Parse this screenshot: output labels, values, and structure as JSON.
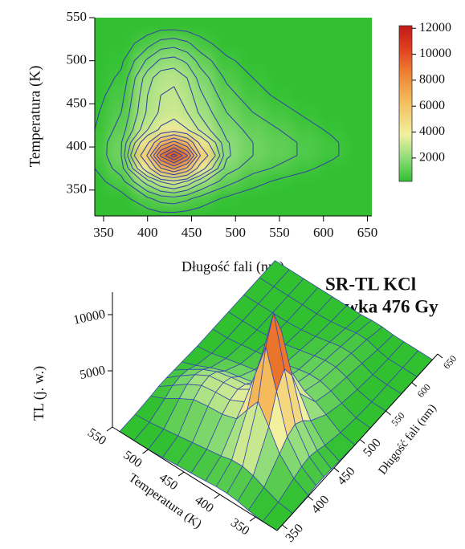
{
  "chart_data": [
    {
      "type": "contour",
      "xlabel": "Długość fali (nm)",
      "ylabel": "Temperatura (K)",
      "xlim": [
        340,
        655
      ],
      "ylim": [
        320,
        550
      ],
      "xticks": [
        350,
        400,
        450,
        500,
        550,
        600,
        650
      ],
      "yticks": [
        350,
        400,
        450,
        500,
        550
      ],
      "clim": [
        200,
        12200
      ],
      "colorbar_ticks": [
        2000,
        4000,
        6000,
        8000,
        10000,
        12000
      ],
      "contour_levels": [
        400,
        900,
        1400,
        1900,
        2400,
        2900,
        3500,
        4500,
        5500,
        6500,
        7500,
        8500,
        9500,
        10500,
        11500
      ],
      "contour_color": "#3548a0",
      "x": [
        340,
        370,
        400,
        415,
        430,
        445,
        460,
        490,
        520,
        550,
        580,
        610,
        640
      ],
      "y": [
        320,
        340,
        360,
        375,
        390,
        405,
        420,
        440,
        460,
        480,
        500,
        520,
        540
      ],
      "z": [
        [
          0,
          0,
          100,
          200,
          200,
          150,
          100,
          0,
          0,
          0,
          0,
          0,
          0
        ],
        [
          0,
          200,
          800,
          1100,
          1200,
          1000,
          700,
          300,
          100,
          0,
          0,
          0,
          0
        ],
        [
          200,
          710,
          2190,
          2940,
          3290,
          2840,
          2090,
          1110,
          600,
          300,
          100,
          0,
          0
        ],
        [
          400,
          1150,
          4000,
          6360,
          7620,
          6260,
          3900,
          1650,
          1100,
          800,
          500,
          200,
          0
        ],
        [
          500,
          1390,
          5630,
          9740,
          12000,
          9640,
          5530,
          1990,
          1400,
          1100,
          800,
          500,
          100
        ],
        [
          500,
          1350,
          4300,
          6660,
          7920,
          6560,
          4200,
          1950,
          1400,
          1100,
          800,
          500,
          100
        ],
        [
          400,
          1110,
          2890,
          3640,
          3990,
          3540,
          2790,
          1710,
          1200,
          900,
          600,
          300,
          0
        ],
        [
          300,
          900,
          2500,
          3000,
          3200,
          2900,
          2300,
          1400,
          900,
          600,
          300,
          100,
          0
        ],
        [
          200,
          700,
          2400,
          2900,
          3000,
          2700,
          2000,
          1100,
          600,
          300,
          100,
          0,
          0
        ],
        [
          100,
          500,
          2200,
          2700,
          2800,
          2400,
          1700,
          800,
          400,
          100,
          0,
          0,
          0
        ],
        [
          0,
          300,
          1500,
          2000,
          2100,
          1800,
          1200,
          500,
          200,
          0,
          0,
          0,
          0
        ],
        [
          0,
          100,
          700,
          1100,
          1200,
          1000,
          600,
          150,
          0,
          0,
          0,
          0,
          0
        ],
        [
          0,
          0,
          100,
          200,
          200,
          150,
          100,
          0,
          0,
          0,
          0,
          0,
          0
        ]
      ]
    },
    {
      "type": "surface3d",
      "title": "SR-TL KCl",
      "subtitle": "dawka 476 Gy",
      "xlabel": "Długość fali (nm)",
      "ylabel": "Temperatura (K)",
      "zlabel": "TL (j. w.)",
      "xlim": [
        340,
        650
      ],
      "ylim": [
        320,
        550
      ],
      "zlim": [
        0,
        12000
      ],
      "xticks": [
        350,
        400,
        450,
        500,
        550,
        600,
        650
      ],
      "yticks": [
        350,
        400,
        450,
        500,
        550
      ],
      "zticks": [
        5000,
        10000
      ],
      "mesh_color": "#3a4aa8"
    }
  ]
}
